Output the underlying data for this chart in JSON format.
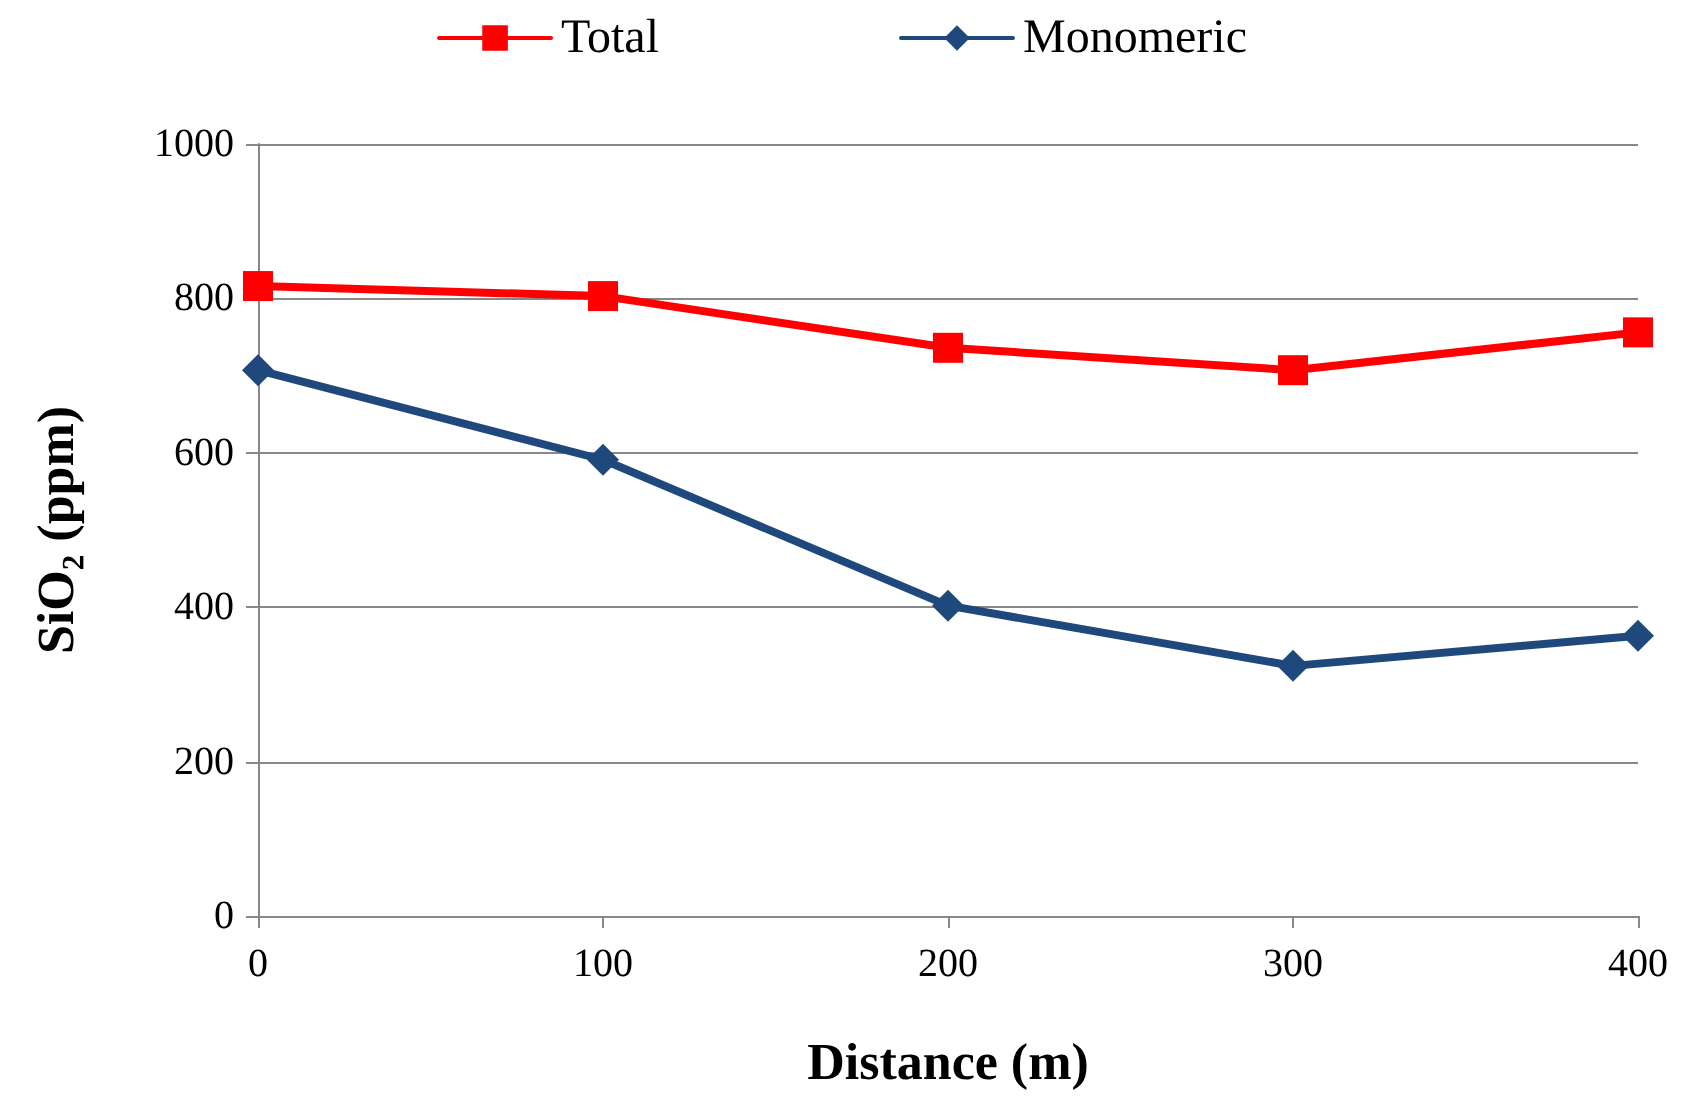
{
  "chart_data": {
    "type": "line",
    "xlabel": "Distance (m)",
    "ylabel": "SiO₂ (ppm)",
    "x": [
      0,
      100,
      200,
      300,
      400
    ],
    "series": [
      {
        "name": "Total",
        "color": "#ff0000",
        "marker": "square",
        "values": [
          816,
          803,
          736,
          707,
          756
        ]
      },
      {
        "name": "Monomeric",
        "color": "#1f497d",
        "marker": "diamond",
        "values": [
          707,
          591,
          402,
          324,
          363
        ]
      }
    ],
    "xlim": [
      0,
      400
    ],
    "xticks": [
      0,
      100,
      200,
      300,
      400
    ],
    "ylim": [
      0,
      1000
    ],
    "yticks": [
      0,
      200,
      400,
      600,
      800,
      1000
    ],
    "grid": "y",
    "legend": "top",
    "line_style": "solid"
  }
}
